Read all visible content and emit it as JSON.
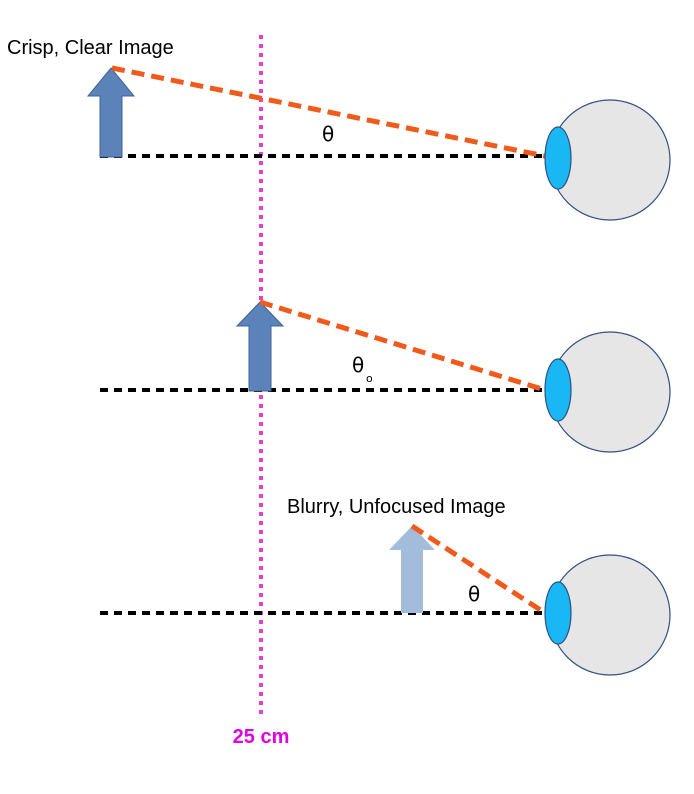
{
  "labels": {
    "top": "Crisp, Clear Image",
    "bottom": "Blurry, Unfocused Image",
    "distance": "25 cm"
  },
  "angles": {
    "top": "θ",
    "middle": "θ",
    "middle_subscript": "o",
    "bottom": "θ"
  },
  "colors": {
    "near_point_line": "#e83fd0",
    "distance_text": "#e000e0",
    "sight_line": "#f05a1a",
    "axis": "#000000",
    "arrow_solid": "#5b82b9",
    "arrow_solid_edge": "#3f6499",
    "arrow_faded": "#a4bcdc",
    "eyeball": "#e6e6e6",
    "eyeball_edge": "#2f4f7f",
    "cornea": "#1ab7f5"
  },
  "icons": {
    "object": "up-arrow",
    "viewer": "eye"
  }
}
